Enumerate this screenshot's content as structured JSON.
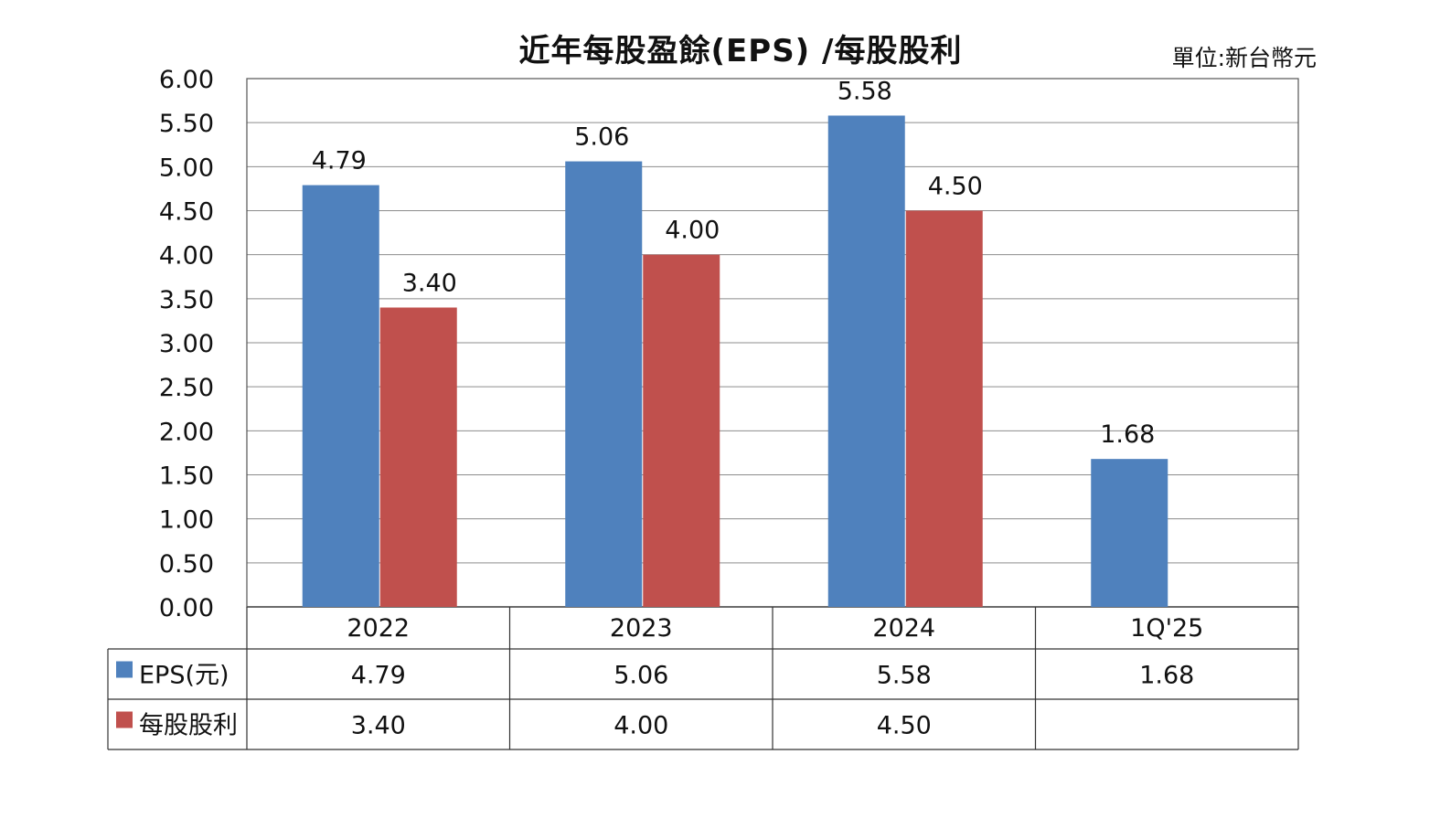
{
  "chart_data": {
    "type": "bar",
    "title": "近年每股盈餘(EPS) /每股股利",
    "unit": "單位:新台幣元",
    "categories": [
      "2022",
      "2023",
      "2024",
      "1Q'25"
    ],
    "series": [
      {
        "name": "EPS(元)",
        "color": "#4F81BD",
        "values": [
          4.79,
          5.06,
          5.58,
          1.68
        ]
      },
      {
        "name": "每股股利",
        "color": "#C0504D",
        "values": [
          3.4,
          4.0,
          4.5,
          null
        ]
      }
    ],
    "ylim": [
      0,
      6
    ],
    "ytick_step": 0.5,
    "grid": true,
    "legend": "data-table-left",
    "data_table": true
  }
}
